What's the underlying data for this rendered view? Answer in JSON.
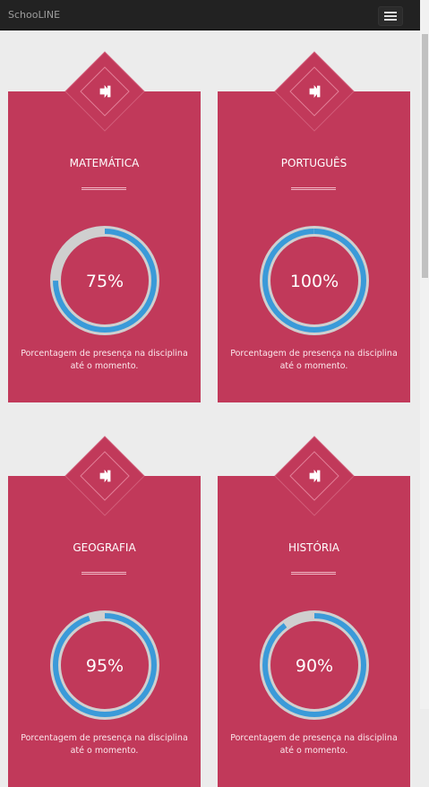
{
  "navbar": {
    "brand": "SchooLINE"
  },
  "cards": [
    {
      "title": "MATEMÁTICA",
      "value": 75,
      "value_label": "75%",
      "description": "Porcentagem de presença na disciplina até o momento."
    },
    {
      "title": "PORTUGUÊS",
      "value": 100,
      "value_label": "100%",
      "description": "Porcentagem de presença na disciplina até o momento."
    },
    {
      "title": "GEOGRAFIA",
      "value": 95,
      "value_label": "95%",
      "description": "Porcentagem de presença na disciplina até o momento."
    },
    {
      "title": "HISTÓRIA",
      "value": 90,
      "value_label": "90%",
      "description": "Porcentagem de presença na disciplina até o momento."
    }
  ]
}
